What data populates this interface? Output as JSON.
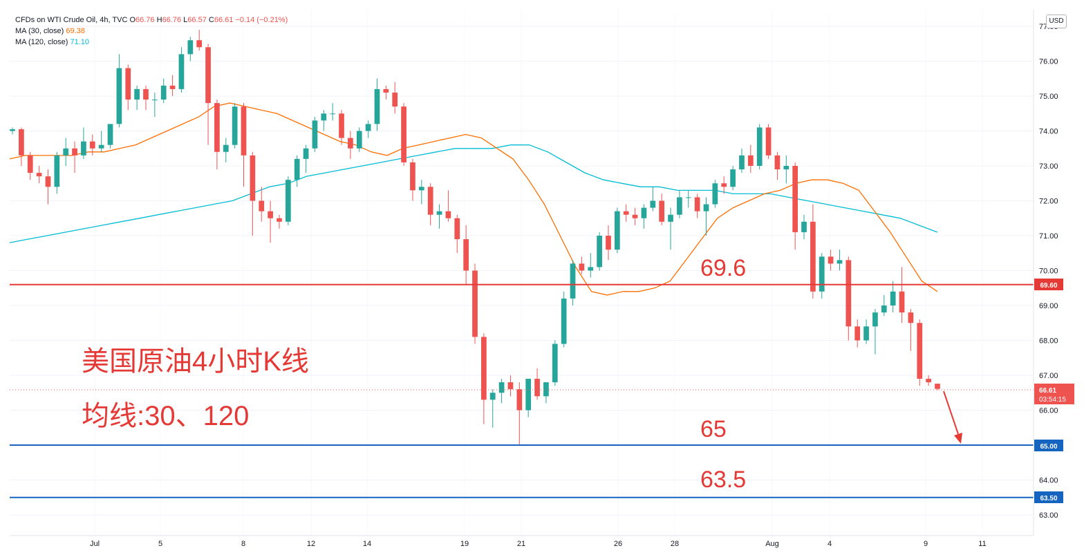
{
  "header": {
    "title": "CFDs on WTI Crude Oil, 4h, TVC",
    "ohlc": {
      "O": "66.76",
      "H": "66.76",
      "L": "66.57",
      "C": "66.61",
      "change": "−0.14 (−0.21%)"
    },
    "ma30_label": "MA (30, close)",
    "ma30_value": "69.38",
    "ma120_label": "MA (120, close)",
    "ma120_value": "71.10",
    "currency": "USD"
  },
  "colors": {
    "up": "#26a69a",
    "down": "#ef5350",
    "ma30": "#ff6d00",
    "ma120": "#00bcd4",
    "resistance": "#e53935",
    "support": "#1565c0",
    "annotation": "#e53935"
  },
  "annotations": {
    "title_cn": "美国原油4小时K线",
    "subtitle_cn": "均线:30、120",
    "level_69": "69.6",
    "level_65": "65",
    "level_63": "63.5",
    "price_tag": "66.61",
    "countdown": "03:54:15",
    "tag_69": "69.60",
    "tag_65": "65.00",
    "tag_63": "63.50"
  },
  "chart_data": {
    "type": "candlestick",
    "instrument": "CFDs on WTI Crude Oil",
    "timeframe": "4h",
    "ylim": [
      62.5,
      77.3
    ],
    "y_ticks": [
      "63.00",
      "64.00",
      "65.00",
      "66.00",
      "67.00",
      "68.00",
      "69.00",
      "70.00",
      "71.00",
      "72.00",
      "73.00",
      "74.00",
      "75.00",
      "76.00",
      "77.00"
    ],
    "x_ticks": [
      "Jul",
      "5",
      "8",
      "12",
      "14",
      "19",
      "21",
      "26",
      "28",
      "Aug",
      "4",
      "9",
      "11"
    ],
    "horizontal_lines": [
      {
        "label": "69.6",
        "value": 69.6,
        "color": "red"
      },
      {
        "label": "65",
        "value": 65.0,
        "color": "blue"
      },
      {
        "label": "63.5",
        "value": 63.5,
        "color": "blue"
      }
    ],
    "last_price": 66.61,
    "ma30": [
      73.2,
      73.3,
      73.3,
      73.3,
      73.3,
      73.4,
      73.4,
      73.5,
      73.6,
      73.8,
      74.0,
      74.2,
      74.4,
      74.7,
      74.8,
      74.7,
      74.6,
      74.5,
      74.3,
      74.1,
      73.9,
      73.7,
      73.6,
      73.4,
      73.3,
      73.5,
      73.6,
      73.7,
      73.8,
      73.9,
      73.8,
      73.5,
      73.2,
      72.6,
      71.9,
      71.0,
      70.1,
      69.4,
      69.3,
      69.4,
      69.4,
      69.5,
      69.7,
      70.3,
      70.9,
      71.5,
      71.8,
      72.0,
      72.2,
      72.3,
      72.5,
      72.6,
      72.6,
      72.5,
      72.3,
      71.7,
      71.1,
      70.4,
      69.7,
      69.4
    ],
    "ma120": [
      70.8,
      70.9,
      71.0,
      71.1,
      71.2,
      71.3,
      71.4,
      71.5,
      71.6,
      71.7,
      71.8,
      71.9,
      72.0,
      72.2,
      72.4,
      72.5,
      72.7,
      72.8,
      72.9,
      73.0,
      73.1,
      73.2,
      73.3,
      73.4,
      73.5,
      73.5,
      73.5,
      73.6,
      73.6,
      73.4,
      73.1,
      72.8,
      72.6,
      72.5,
      72.4,
      72.4,
      72.3,
      72.3,
      72.3,
      72.2,
      72.2,
      72.2,
      72.1,
      72.0,
      71.9,
      71.8,
      71.7,
      71.6,
      71.5,
      71.3,
      71.1
    ],
    "candles": [
      {
        "o": 74.0,
        "h": 74.1,
        "l": 73.9,
        "c": 74.05
      },
      {
        "o": 74.05,
        "h": 74.1,
        "l": 73.0,
        "c": 73.3
      },
      {
        "o": 73.3,
        "h": 73.4,
        "l": 72.6,
        "c": 72.8
      },
      {
        "o": 72.8,
        "h": 73.0,
        "l": 72.5,
        "c": 72.7
      },
      {
        "o": 72.7,
        "h": 72.9,
        "l": 71.9,
        "c": 72.4
      },
      {
        "o": 72.4,
        "h": 73.4,
        "l": 72.2,
        "c": 73.3
      },
      {
        "o": 73.3,
        "h": 73.8,
        "l": 73.0,
        "c": 73.5
      },
      {
        "o": 73.5,
        "h": 73.7,
        "l": 72.8,
        "c": 73.3
      },
      {
        "o": 73.3,
        "h": 74.1,
        "l": 73.2,
        "c": 73.7
      },
      {
        "o": 73.7,
        "h": 73.9,
        "l": 73.3,
        "c": 73.5
      },
      {
        "o": 73.5,
        "h": 74.0,
        "l": 73.4,
        "c": 73.6
      },
      {
        "o": 73.6,
        "h": 74.2,
        "l": 73.5,
        "c": 74.2
      },
      {
        "o": 74.2,
        "h": 76.2,
        "l": 74.1,
        "c": 75.8
      },
      {
        "o": 75.8,
        "h": 75.9,
        "l": 74.6,
        "c": 74.9
      },
      {
        "o": 74.9,
        "h": 75.3,
        "l": 74.6,
        "c": 75.2
      },
      {
        "o": 75.2,
        "h": 75.3,
        "l": 74.6,
        "c": 74.9
      },
      {
        "o": 74.9,
        "h": 75.1,
        "l": 74.4,
        "c": 74.9
      },
      {
        "o": 74.9,
        "h": 75.5,
        "l": 74.8,
        "c": 75.3
      },
      {
        "o": 75.3,
        "h": 75.6,
        "l": 75.0,
        "c": 75.2
      },
      {
        "o": 75.2,
        "h": 76.4,
        "l": 75.1,
        "c": 76.2
      },
      {
        "o": 76.2,
        "h": 76.7,
        "l": 76.0,
        "c": 76.6
      },
      {
        "o": 76.6,
        "h": 76.9,
        "l": 76.3,
        "c": 76.4
      },
      {
        "o": 76.4,
        "h": 76.5,
        "l": 73.6,
        "c": 74.8
      },
      {
        "o": 74.8,
        "h": 74.9,
        "l": 72.9,
        "c": 73.4
      },
      {
        "o": 73.4,
        "h": 73.8,
        "l": 73.1,
        "c": 73.6
      },
      {
        "o": 73.6,
        "h": 74.8,
        "l": 73.5,
        "c": 74.7
      },
      {
        "o": 74.7,
        "h": 74.8,
        "l": 72.4,
        "c": 73.3
      },
      {
        "o": 73.3,
        "h": 73.4,
        "l": 71.0,
        "c": 72.0
      },
      {
        "o": 72.0,
        "h": 72.4,
        "l": 71.4,
        "c": 71.7
      },
      {
        "o": 71.7,
        "h": 72.0,
        "l": 70.8,
        "c": 71.5
      },
      {
        "o": 71.5,
        "h": 71.6,
        "l": 71.2,
        "c": 71.4
      },
      {
        "o": 71.4,
        "h": 72.7,
        "l": 71.3,
        "c": 72.6
      },
      {
        "o": 72.6,
        "h": 73.3,
        "l": 72.4,
        "c": 73.2
      },
      {
        "o": 73.2,
        "h": 73.6,
        "l": 72.8,
        "c": 73.5
      },
      {
        "o": 73.5,
        "h": 74.4,
        "l": 73.4,
        "c": 74.3
      },
      {
        "o": 74.3,
        "h": 74.6,
        "l": 74.0,
        "c": 74.5
      },
      {
        "o": 74.5,
        "h": 74.8,
        "l": 74.3,
        "c": 74.5
      },
      {
        "o": 74.5,
        "h": 74.6,
        "l": 73.6,
        "c": 73.8
      },
      {
        "o": 73.8,
        "h": 74.0,
        "l": 73.2,
        "c": 73.5
      },
      {
        "o": 73.5,
        "h": 74.1,
        "l": 73.4,
        "c": 74.0
      },
      {
        "o": 74.0,
        "h": 74.3,
        "l": 73.8,
        "c": 74.2
      },
      {
        "o": 74.2,
        "h": 75.5,
        "l": 74.0,
        "c": 75.2
      },
      {
        "o": 75.2,
        "h": 75.3,
        "l": 74.9,
        "c": 75.1
      },
      {
        "o": 75.1,
        "h": 75.4,
        "l": 74.5,
        "c": 74.7
      },
      {
        "o": 74.7,
        "h": 74.8,
        "l": 73.0,
        "c": 73.1
      },
      {
        "o": 73.1,
        "h": 73.2,
        "l": 72.0,
        "c": 72.3
      },
      {
        "o": 72.3,
        "h": 72.6,
        "l": 71.9,
        "c": 72.4
      },
      {
        "o": 72.4,
        "h": 72.5,
        "l": 71.3,
        "c": 71.6
      },
      {
        "o": 71.6,
        "h": 71.9,
        "l": 71.2,
        "c": 71.7
      },
      {
        "o": 71.7,
        "h": 72.3,
        "l": 71.4,
        "c": 71.5
      },
      {
        "o": 71.5,
        "h": 71.6,
        "l": 70.5,
        "c": 70.9
      },
      {
        "o": 70.9,
        "h": 71.3,
        "l": 69.6,
        "c": 70.0
      },
      {
        "o": 70.0,
        "h": 70.2,
        "l": 67.9,
        "c": 68.1
      },
      {
        "o": 68.1,
        "h": 68.2,
        "l": 65.6,
        "c": 66.3
      },
      {
        "o": 66.3,
        "h": 66.6,
        "l": 65.5,
        "c": 66.5
      },
      {
        "o": 66.5,
        "h": 66.9,
        "l": 66.2,
        "c": 66.8
      },
      {
        "o": 66.8,
        "h": 67.0,
        "l": 66.4,
        "c": 66.6
      },
      {
        "o": 66.6,
        "h": 66.8,
        "l": 65.0,
        "c": 66.0
      },
      {
        "o": 66.0,
        "h": 66.9,
        "l": 65.8,
        "c": 66.9
      },
      {
        "o": 66.9,
        "h": 67.2,
        "l": 66.3,
        "c": 66.4
      },
      {
        "o": 66.4,
        "h": 66.8,
        "l": 66.2,
        "c": 66.8
      },
      {
        "o": 66.8,
        "h": 68.0,
        "l": 66.7,
        "c": 67.9
      },
      {
        "o": 67.9,
        "h": 69.4,
        "l": 67.8,
        "c": 69.2
      },
      {
        "o": 69.2,
        "h": 70.3,
        "l": 69.0,
        "c": 70.2
      },
      {
        "o": 70.2,
        "h": 70.4,
        "l": 69.9,
        "c": 70.0
      },
      {
        "o": 70.0,
        "h": 70.5,
        "l": 69.8,
        "c": 70.1
      },
      {
        "o": 70.1,
        "h": 71.1,
        "l": 70.0,
        "c": 71.0
      },
      {
        "o": 71.0,
        "h": 71.3,
        "l": 70.3,
        "c": 70.6
      },
      {
        "o": 70.6,
        "h": 71.8,
        "l": 70.5,
        "c": 71.7
      },
      {
        "o": 71.7,
        "h": 71.9,
        "l": 71.4,
        "c": 71.6
      },
      {
        "o": 71.6,
        "h": 71.8,
        "l": 71.3,
        "c": 71.5
      },
      {
        "o": 71.5,
        "h": 71.9,
        "l": 71.2,
        "c": 71.8
      },
      {
        "o": 71.8,
        "h": 72.4,
        "l": 71.7,
        "c": 72.0
      },
      {
        "o": 72.0,
        "h": 72.2,
        "l": 71.3,
        "c": 71.4
      },
      {
        "o": 71.4,
        "h": 71.8,
        "l": 70.6,
        "c": 71.6
      },
      {
        "o": 71.6,
        "h": 72.3,
        "l": 71.5,
        "c": 72.1
      },
      {
        "o": 72.1,
        "h": 72.3,
        "l": 71.8,
        "c": 72.1
      },
      {
        "o": 72.1,
        "h": 72.2,
        "l": 71.5,
        "c": 71.7
      },
      {
        "o": 71.7,
        "h": 72.1,
        "l": 71.0,
        "c": 71.9
      },
      {
        "o": 71.9,
        "h": 72.6,
        "l": 71.8,
        "c": 72.5
      },
      {
        "o": 72.5,
        "h": 72.7,
        "l": 72.2,
        "c": 72.4
      },
      {
        "o": 72.4,
        "h": 73.0,
        "l": 72.3,
        "c": 72.9
      },
      {
        "o": 72.9,
        "h": 73.5,
        "l": 72.8,
        "c": 73.3
      },
      {
        "o": 73.3,
        "h": 73.6,
        "l": 72.8,
        "c": 73.0
      },
      {
        "o": 73.0,
        "h": 74.2,
        "l": 72.9,
        "c": 74.1
      },
      {
        "o": 74.1,
        "h": 74.2,
        "l": 73.2,
        "c": 73.3
      },
      {
        "o": 73.3,
        "h": 73.4,
        "l": 72.6,
        "c": 72.9
      },
      {
        "o": 72.9,
        "h": 73.3,
        "l": 72.5,
        "c": 73.0
      },
      {
        "o": 73.0,
        "h": 73.1,
        "l": 70.6,
        "c": 71.1
      },
      {
        "o": 71.1,
        "h": 71.6,
        "l": 70.9,
        "c": 71.4
      },
      {
        "o": 71.4,
        "h": 71.9,
        "l": 69.2,
        "c": 69.4
      },
      {
        "o": 69.4,
        "h": 70.5,
        "l": 69.2,
        "c": 70.4
      },
      {
        "o": 70.4,
        "h": 70.6,
        "l": 70.0,
        "c": 70.2
      },
      {
        "o": 70.2,
        "h": 70.6,
        "l": 70.0,
        "c": 70.3
      },
      {
        "o": 70.3,
        "h": 70.4,
        "l": 68.0,
        "c": 68.4
      },
      {
        "o": 68.4,
        "h": 68.6,
        "l": 67.8,
        "c": 68.0
      },
      {
        "o": 68.0,
        "h": 68.6,
        "l": 67.9,
        "c": 68.4
      },
      {
        "o": 68.4,
        "h": 68.9,
        "l": 67.6,
        "c": 68.8
      },
      {
        "o": 68.8,
        "h": 69.3,
        "l": 68.7,
        "c": 69.0
      },
      {
        "o": 69.0,
        "h": 69.7,
        "l": 68.8,
        "c": 69.4
      },
      {
        "o": 69.4,
        "h": 70.1,
        "l": 68.5,
        "c": 68.8
      },
      {
        "o": 68.8,
        "h": 68.9,
        "l": 67.7,
        "c": 68.5
      },
      {
        "o": 68.5,
        "h": 68.6,
        "l": 66.7,
        "c": 66.9
      },
      {
        "o": 66.9,
        "h": 67.0,
        "l": 66.7,
        "c": 66.8
      },
      {
        "o": 66.76,
        "h": 66.76,
        "l": 66.57,
        "c": 66.61
      }
    ]
  }
}
